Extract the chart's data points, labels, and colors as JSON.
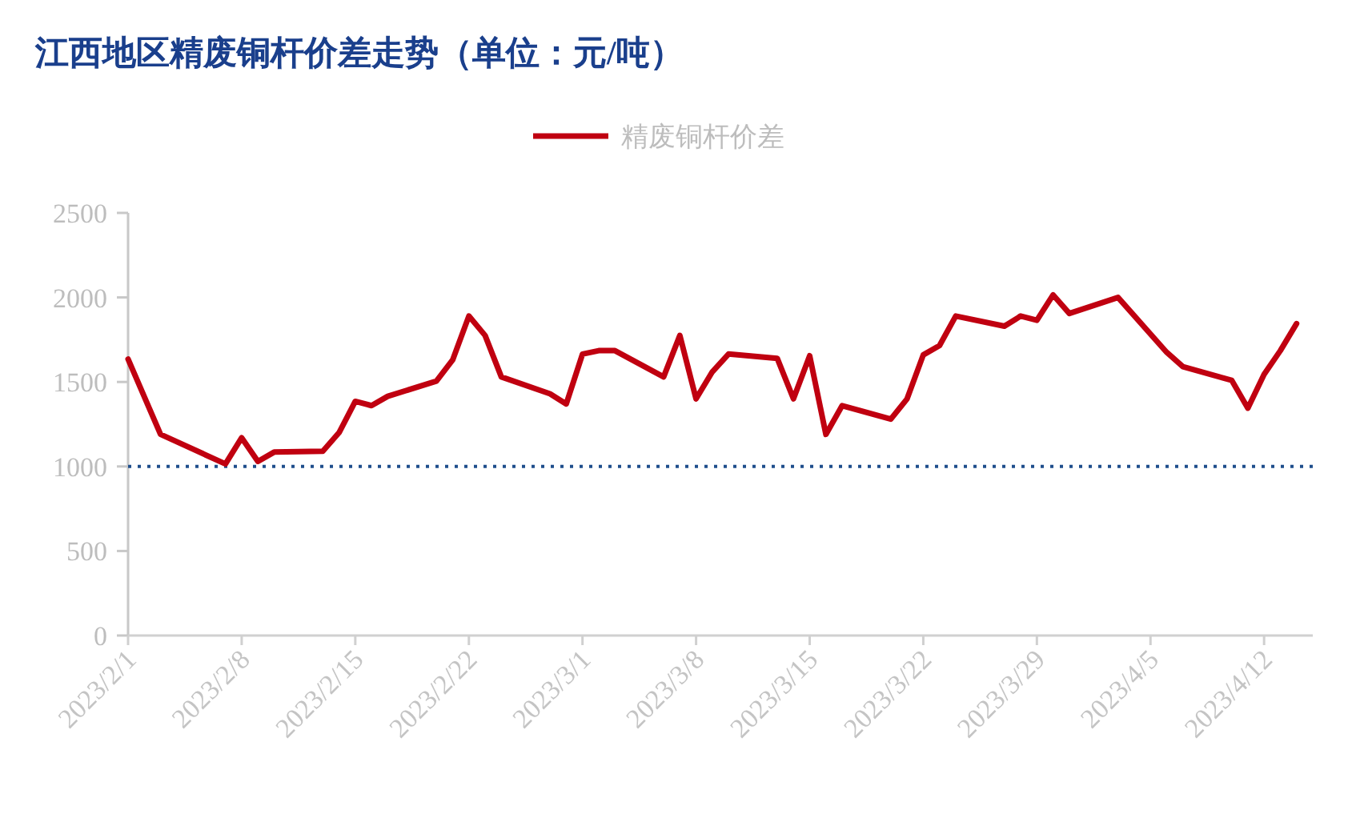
{
  "chart_data": {
    "type": "line",
    "title": "江西地区精废铜杆价差走势（单位：元/吨）",
    "x": [
      "2023-02-01",
      "2023-02-03",
      "2023-02-07",
      "2023-02-08",
      "2023-02-09",
      "2023-02-10",
      "2023-02-13",
      "2023-02-14",
      "2023-02-15",
      "2023-02-16",
      "2023-02-17",
      "2023-02-20",
      "2023-02-21",
      "2023-02-22",
      "2023-02-23",
      "2023-02-24",
      "2023-02-27",
      "2023-02-28",
      "2023-03-01",
      "2023-03-02",
      "2023-03-03",
      "2023-03-06",
      "2023-03-07",
      "2023-03-08",
      "2023-03-09",
      "2023-03-10",
      "2023-03-13",
      "2023-03-14",
      "2023-03-15",
      "2023-03-16",
      "2023-03-17",
      "2023-03-20",
      "2023-03-21",
      "2023-03-22",
      "2023-03-23",
      "2023-03-24",
      "2023-03-27",
      "2023-03-28",
      "2023-03-29",
      "2023-03-30",
      "2023-03-31",
      "2023-04-03",
      "2023-04-06",
      "2023-04-07",
      "2023-04-10",
      "2023-04-11",
      "2023-04-12",
      "2023-04-13",
      "2023-04-14"
    ],
    "series": [
      {
        "name": "精废铜杆价差",
        "color": "#c00010",
        "values": [
          1635,
          1190,
          1015,
          1170,
          1030,
          1085,
          1090,
          1200,
          1385,
          1360,
          1415,
          1505,
          1630,
          1890,
          1775,
          1530,
          1430,
          1370,
          1665,
          1685,
          1685,
          1530,
          1775,
          1400,
          1560,
          1665,
          1640,
          1400,
          1655,
          1190,
          1360,
          1280,
          1400,
          1660,
          1715,
          1890,
          1830,
          1890,
          1865,
          2015,
          1905,
          2000,
          1675,
          1590,
          1510,
          1345,
          1545,
          1685,
          1845
        ]
      }
    ],
    "xlim": [
      "2023-02-01",
      "2023-04-15"
    ],
    "xticks": [
      {
        "value": "2023-02-01",
        "label": "2023/2/1"
      },
      {
        "value": "2023-02-08",
        "label": "2023/2/8"
      },
      {
        "value": "2023-02-15",
        "label": "2023/2/15"
      },
      {
        "value": "2023-02-22",
        "label": "2023/2/22"
      },
      {
        "value": "2023-03-01",
        "label": "2023/3/1"
      },
      {
        "value": "2023-03-08",
        "label": "2023/3/8"
      },
      {
        "value": "2023-03-15",
        "label": "2023/3/15"
      },
      {
        "value": "2023-03-22",
        "label": "2023/3/22"
      },
      {
        "value": "2023-03-29",
        "label": "2023/3/29"
      },
      {
        "value": "2023-04-05",
        "label": "2023/4/5"
      },
      {
        "value": "2023-04-12",
        "label": "2023/4/12"
      }
    ],
    "ylim": [
      0,
      2500
    ],
    "yticks": [
      0,
      500,
      1000,
      1500,
      2000,
      2500
    ],
    "ref_lines": [
      {
        "axis": "y",
        "value": 1000,
        "color": "#1f4e8c",
        "line_style": "dotted"
      }
    ],
    "legend": "top",
    "grid": false,
    "marker": "none",
    "line_style": "solid"
  }
}
